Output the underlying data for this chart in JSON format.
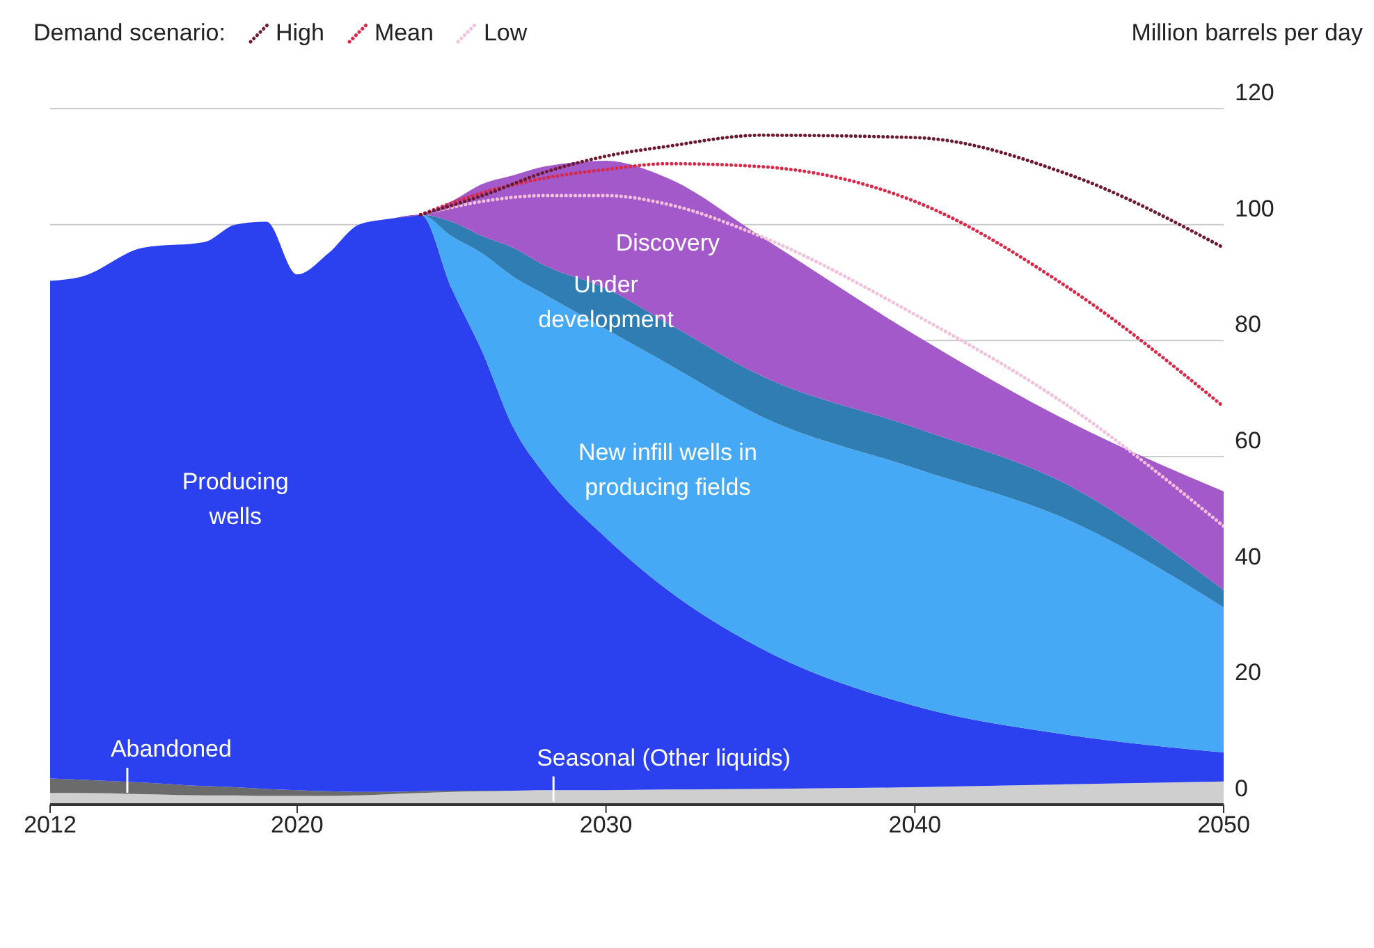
{
  "chart_data": {
    "type": "area",
    "stacked": true,
    "legend_title": "Demand scenario:",
    "ylabel": "Million barrels per day",
    "x": [
      2012,
      2013,
      2015,
      2017,
      2018,
      2019,
      2020,
      2021,
      2022,
      2023,
      2024,
      2025,
      2026,
      2027,
      2028,
      2030,
      2032,
      2035,
      2040,
      2045,
      2050
    ],
    "series": [
      {
        "color": "#cfcfcf",
        "values": [
          2,
          2,
          1.8,
          1.6,
          1.6,
          1.5,
          1.5,
          1.5,
          1.6,
          1.8,
          2,
          2.2,
          2.3,
          2.4,
          2.5,
          2.5,
          2.6,
          2.7,
          3,
          3.5,
          4
        ]
      },
      {
        "color": "#6b6b6b",
        "values": [
          2.5,
          2.3,
          2,
          1.6,
          1.4,
          1.2,
          1,
          0.8,
          0.6,
          0.4,
          0.3,
          0.2,
          0.1,
          0,
          0,
          0,
          0,
          0,
          0,
          0,
          0
        ]
      },
      {
        "name": "Producing wells",
        "color": "#2b40ef",
        "values": [
          85.8,
          86.7,
          92.2,
          93.8,
          97,
          97.8,
          88.9,
          92.7,
          97.8,
          98.8,
          99.4,
          86.6,
          75.6,
          62.6,
          54.5,
          43.5,
          34.4,
          24.3,
          14,
          8.5,
          5
        ]
      },
      {
        "name": "New infill wells in producing fields",
        "color": "#46a9f5",
        "values": [
          0,
          0,
          0,
          0,
          0,
          0,
          0,
          0,
          0,
          0,
          0,
          9,
          17,
          26,
          31,
          36,
          39,
          40,
          41,
          37,
          25
        ]
      },
      {
        "name": "Under development",
        "color": "#2f7db3",
        "values": [
          0,
          0,
          0,
          0,
          0,
          0,
          0,
          0,
          0,
          0,
          0,
          2.5,
          3,
          5,
          5,
          7,
          7,
          7,
          7,
          6,
          3
        ]
      },
      {
        "name": "Discovery",
        "color": "#a359c9",
        "values": [
          0,
          0,
          0,
          0,
          0,
          0,
          0,
          0,
          0,
          0,
          0,
          3.5,
          9,
          12.5,
          17,
          22,
          25,
          24,
          16,
          11,
          17
        ]
      },
      {
        "type": "line",
        "name": "High",
        "color": "#6e1a2e",
        "line_style": "dotted",
        "x": [
          2024,
          2026,
          2028,
          2030,
          2032,
          2035,
          2040,
          2045,
          2050
        ],
        "values": [
          101.7,
          105,
          109,
          111.8,
          113.5,
          115.4,
          115,
          108.6,
          96
        ]
      },
      {
        "type": "line",
        "name": "Mean",
        "color": "#d8294a",
        "line_style": "dotted",
        "x": [
          2024,
          2026,
          2028,
          2030,
          2032,
          2035,
          2040,
          2045,
          2050
        ],
        "values": [
          101.7,
          105.5,
          108,
          109.5,
          110.5,
          110,
          104,
          89,
          68.6
        ]
      },
      {
        "type": "line",
        "name": "Low",
        "color": "#f2c0dc",
        "line_style": "dotted",
        "x": [
          2024,
          2026,
          2028,
          2030,
          2032,
          2035,
          2040,
          2045,
          2050
        ],
        "values": [
          101.7,
          104,
          105,
          105,
          103.5,
          98,
          84.5,
          68.6,
          48
        ]
      }
    ],
    "xlim": [
      2012,
      2050
    ],
    "xticks": [
      2012,
      2020,
      2030,
      2040,
      2050
    ],
    "ylim": [
      0,
      120
    ],
    "yticks": [
      0,
      20,
      40,
      60,
      80,
      100,
      120
    ],
    "grid": "y",
    "legend": "top left",
    "marker": "none",
    "annotations": [
      {
        "text": "Abandoned",
        "x": 2014.5,
        "y": 3
      },
      {
        "text": "Seasonal (Other liquids)",
        "x": 2028.3,
        "y": 1.5
      }
    ]
  }
}
